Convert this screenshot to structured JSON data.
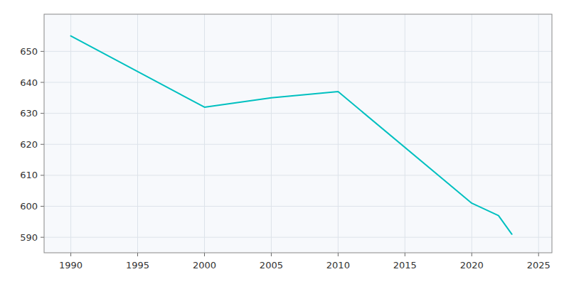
{
  "chart_data": {
    "type": "line",
    "x": [
      1990,
      2000,
      2005,
      2010,
      2020,
      2022,
      2023
    ],
    "values": [
      655,
      632,
      635,
      637,
      601,
      597,
      591
    ],
    "color": "#00C0C0",
    "xlim": [
      1988,
      2026
    ],
    "ylim": [
      585,
      662
    ],
    "xticks": [
      1990,
      1995,
      2000,
      2005,
      2010,
      2015,
      2020,
      2025
    ],
    "yticks": [
      590,
      600,
      610,
      620,
      630,
      640,
      650
    ],
    "grid": true
  }
}
